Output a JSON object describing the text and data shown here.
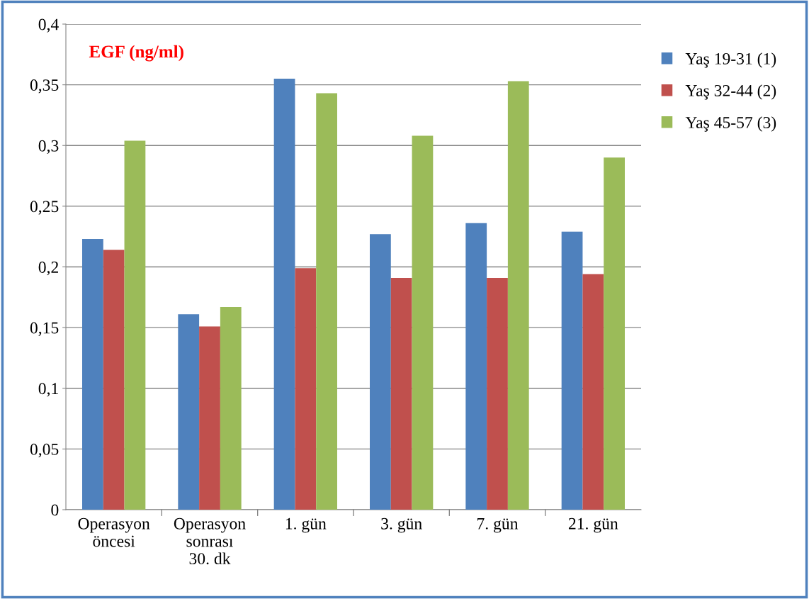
{
  "chart_data": {
    "type": "bar",
    "title": "EGF (ng/ml)",
    "categories": [
      "Operasyon öncesi",
      "Operasyon sonrası 30. dk",
      "1. gün",
      "3. gün",
      "7. gün",
      "21. gün"
    ],
    "series": [
      {
        "name": "Yaş 19-31 (1)",
        "color": "#4f81bd",
        "values": [
          0.223,
          0.161,
          0.355,
          0.227,
          0.236,
          0.229
        ]
      },
      {
        "name": "Yaş 32-44 (2)",
        "color": "#c0504d",
        "values": [
          0.214,
          0.151,
          0.199,
          0.191,
          0.191,
          0.194
        ]
      },
      {
        "name": "Yaş 45-57 (3)",
        "color": "#9bbb59",
        "values": [
          0.304,
          0.167,
          0.343,
          0.308,
          0.353,
          0.29
        ]
      }
    ],
    "ylim": [
      0,
      0.4
    ],
    "yticks": [
      0,
      {
        "value": 0.05,
        "label": "0,05"
      },
      {
        "value": 0.1,
        "label": "0,1"
      },
      {
        "value": 0.15,
        "label": "0,15"
      },
      {
        "value": 0.2,
        "label": "0,2"
      },
      {
        "value": 0.25,
        "label": "0,25"
      },
      {
        "value": 0.3,
        "label": "0,3"
      },
      {
        "value": 0.35,
        "label": "0,35"
      },
      {
        "value": 0.4,
        "label": "0,4"
      }
    ],
    "grid": "y",
    "legend": "right"
  }
}
